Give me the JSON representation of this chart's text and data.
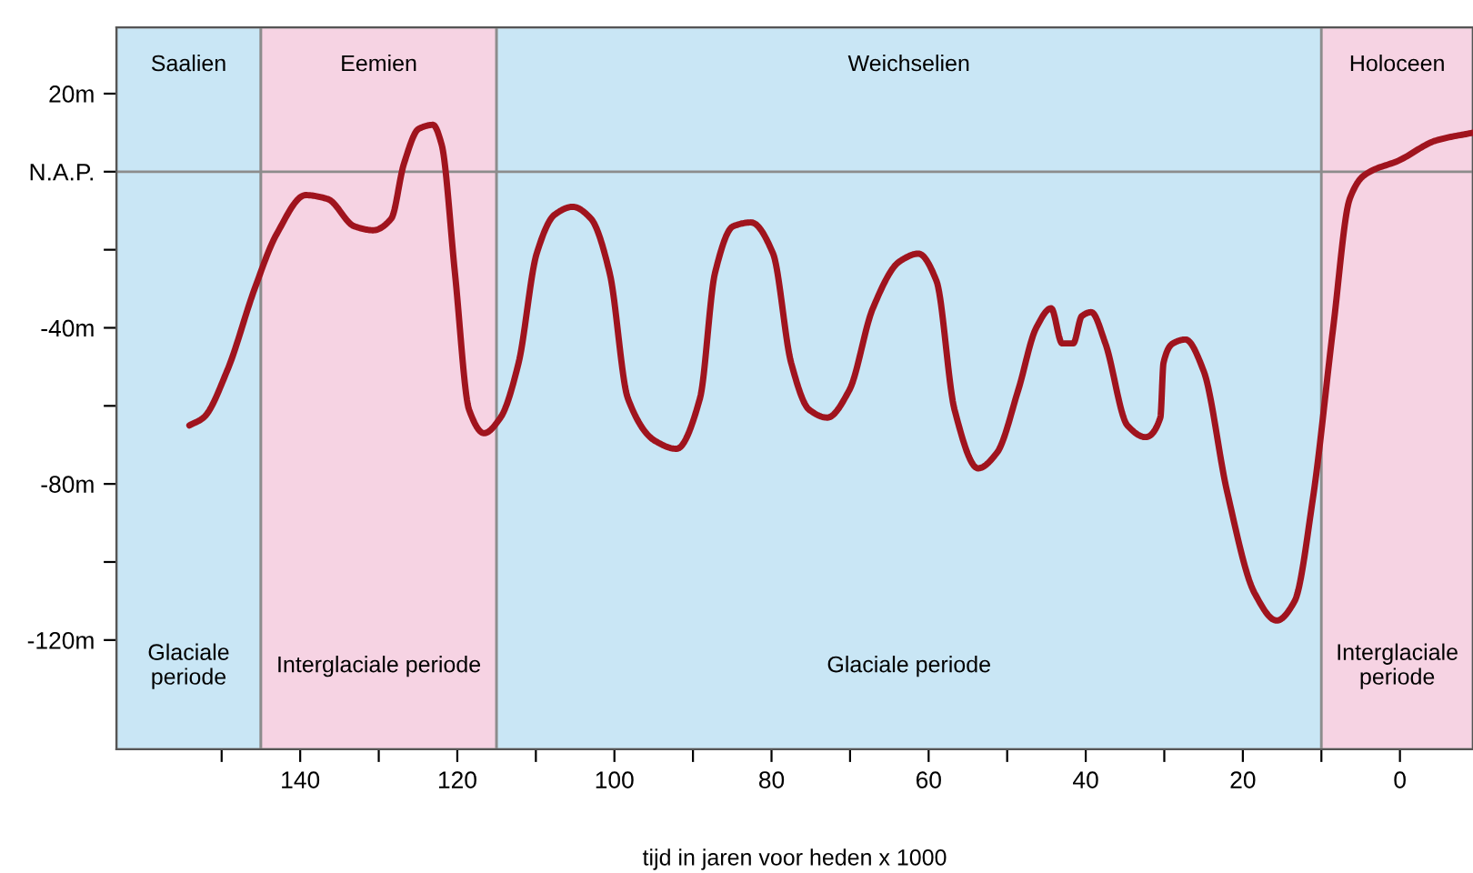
{
  "chart_data": {
    "type": "line",
    "xlabel": "tijd in jaren voor heden x 1000",
    "x": [
      154.1,
      152.3,
      149.3,
      145.8,
      143,
      139.3,
      136.5,
      133.1,
      130.7,
      128.4,
      126.8,
      124.9,
      123.1,
      122,
      120.3,
      118.5,
      116.6,
      114.5,
      112.2,
      109.9,
      107.6,
      105.3,
      103,
      100.6,
      98.3,
      94.8,
      92.1,
      89.1,
      87.2,
      84.9,
      82.6,
      79.8,
      77.5,
      75.2,
      72.9,
      70.1,
      67.1,
      63.7,
      61.3,
      59,
      56.7,
      53.7,
      51.3,
      48.6,
      46.3,
      44.4,
      43,
      41.6,
      40.5,
      39.3,
      37.5,
      34.7,
      32.4,
      30.5,
      30.1,
      28.9,
      27.3,
      25,
      22,
      18.5,
      15.7,
      13.4,
      11.1,
      8.5,
      6.4,
      4.6,
      0,
      -4.6,
      -9.3
    ],
    "series": [
      {
        "color": "#a0141e",
        "values": [
          -65,
          -63,
          -51,
          -30,
          -16,
          -6,
          -7,
          -14,
          -15,
          -12,
          2,
          11,
          12,
          7,
          -26,
          -61,
          -67,
          -63,
          -49,
          -21,
          -11,
          -9,
          -12,
          -26,
          -58,
          -69,
          -71,
          -58,
          -26,
          -14,
          -13,
          -21,
          -49,
          -61,
          -63,
          -56,
          -35,
          -23,
          -21,
          -28,
          -61,
          -76,
          -72,
          -56,
          -40,
          -35,
          -44,
          -44,
          -37,
          -36,
          -44,
          -65,
          -68,
          -63,
          -49,
          -44,
          -43,
          -51,
          -82,
          -108,
          -115,
          -110,
          -84,
          -40,
          -7,
          -1,
          3,
          8,
          10
        ]
      }
    ],
    "xlim": [
      163.4,
      -9.3
    ],
    "ylim": [
      -148,
      37
    ],
    "xticks": [
      {
        "value": 150,
        "label": null
      },
      140,
      {
        "value": 130,
        "label": null
      },
      120,
      {
        "value": 110,
        "label": null
      },
      100,
      {
        "value": 90,
        "label": null
      },
      80,
      {
        "value": 70,
        "label": null
      },
      60,
      {
        "value": 50,
        "label": null
      },
      40,
      {
        "value": 30,
        "label": null
      },
      20,
      {
        "value": 10,
        "label": null
      },
      0
    ],
    "yticks": [
      {
        "value": -120,
        "label": "-120m"
      },
      {
        "value": -100,
        "label": null
      },
      {
        "value": -80,
        "label": "-80m"
      },
      {
        "value": -60,
        "label": null
      },
      {
        "value": -40,
        "label": "-40m"
      },
      {
        "value": -20,
        "label": null
      },
      {
        "value": 0,
        "label": "N.A.P."
      },
      {
        "value": 20,
        "label": "20m"
      }
    ],
    "bands": [
      {
        "axis": "x",
        "from": 163.4,
        "to": 145,
        "label": "Saalien",
        "color": "#c9e6f5"
      },
      {
        "axis": "x",
        "from": 145,
        "to": 115,
        "label": "Eemien",
        "color": "#f6d3e3"
      },
      {
        "axis": "x",
        "from": 115,
        "to": 10,
        "label": "Weichselien",
        "color": "#c9e6f5"
      },
      {
        "axis": "x",
        "from": 10,
        "to": -9.3,
        "label": "Holoceen",
        "color": "#f6d3e3"
      }
    ],
    "ref_lines": [
      {
        "axis": "y",
        "value": 0,
        "color": "#8c8c8c"
      }
    ],
    "annotations": [
      "Glaciale\nperiode",
      "Interglaciale periode",
      "Glaciale periode",
      "Interglaciale\nperiode"
    ],
    "grid": false,
    "legend": false,
    "line_style": "solid",
    "marker": "none"
  }
}
